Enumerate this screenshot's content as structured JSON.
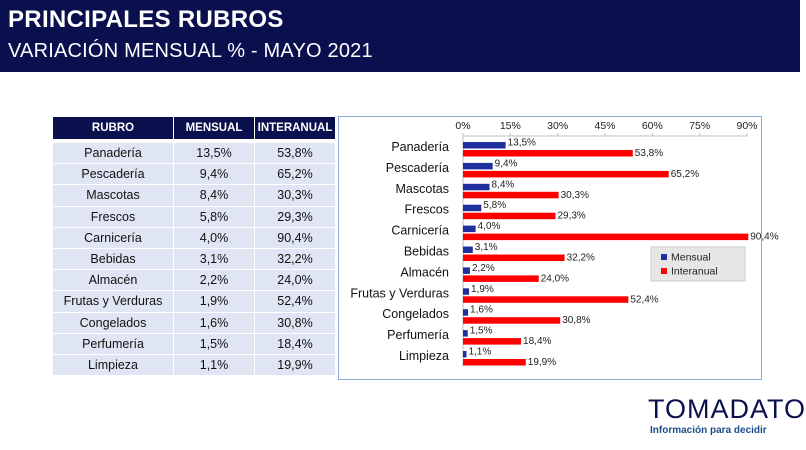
{
  "header": {
    "title": "PRINCIPALES RUBROS",
    "subtitle": "VARIACIÓN MENSUAL % - MAYO 2021"
  },
  "table": {
    "headers": [
      "RUBRO",
      "MENSUAL",
      "INTERANUAL"
    ],
    "rows": [
      [
        "Panadería",
        "13,5%",
        "53,8%"
      ],
      [
        "Pescadería",
        "9,4%",
        "65,2%"
      ],
      [
        "Mascotas",
        "8,4%",
        "30,3%"
      ],
      [
        "Frescos",
        "5,8%",
        "29,3%"
      ],
      [
        "Carnicería",
        "4,0%",
        "90,4%"
      ],
      [
        "Bebidas",
        "3,1%",
        "32,2%"
      ],
      [
        "Almacén",
        "2,2%",
        "24,0%"
      ],
      [
        "Frutas y Verduras",
        "1,9%",
        "52,4%"
      ],
      [
        "Congelados",
        "1,6%",
        "30,8%"
      ],
      [
        "Perfumería",
        "1,5%",
        "18,4%"
      ],
      [
        "Limpieza",
        "1,1%",
        "19,9%"
      ]
    ]
  },
  "chart_data": {
    "type": "bar",
    "orientation": "horizontal",
    "categories": [
      "Panadería",
      "Pescadería",
      "Mascotas",
      "Frescos",
      "Carnicería",
      "Bebidas",
      "Almacén",
      "Frutas y Verduras",
      "Congelados",
      "Perfumería",
      "Limpieza"
    ],
    "series": [
      {
        "name": "Mensual",
        "color": "#1f2f9e",
        "values": [
          13.5,
          9.4,
          8.4,
          5.8,
          4.0,
          3.1,
          2.2,
          1.9,
          1.6,
          1.5,
          1.1
        ],
        "labels": [
          "13,5%",
          "9,4%",
          "8,4%",
          "5,8%",
          "4,0%",
          "3,1%",
          "2,2%",
          "1,9%",
          "1,6%",
          "1,5%",
          "1,1%"
        ]
      },
      {
        "name": "Interanual",
        "color": "#ff0000",
        "values": [
          53.8,
          65.2,
          30.3,
          29.3,
          90.4,
          32.2,
          24.0,
          52.4,
          30.8,
          18.4,
          19.9
        ],
        "labels": [
          "53,8%",
          "65,2%",
          "30,3%",
          "29,3%",
          "90,4%",
          "32,2%",
          "24,0%",
          "52,4%",
          "30,8%",
          "18,4%",
          "19,9%"
        ]
      }
    ],
    "xlim": [
      0,
      90
    ],
    "xticks": [
      0,
      15,
      30,
      45,
      60,
      75,
      90
    ],
    "xtick_labels": [
      "0%",
      "15%",
      "30%",
      "45%",
      "60%",
      "75%",
      "90%"
    ],
    "axis_position": "top",
    "grid": false,
    "legend_position": "right"
  },
  "logo": {
    "brand": "TOMADATO",
    "tagline": "Información para decidir"
  },
  "colors": {
    "header_bg": "#0a0f4e",
    "table_row_bg": "#dfe5f2",
    "mensual": "#1f2f9e",
    "interanual": "#ff0000"
  }
}
